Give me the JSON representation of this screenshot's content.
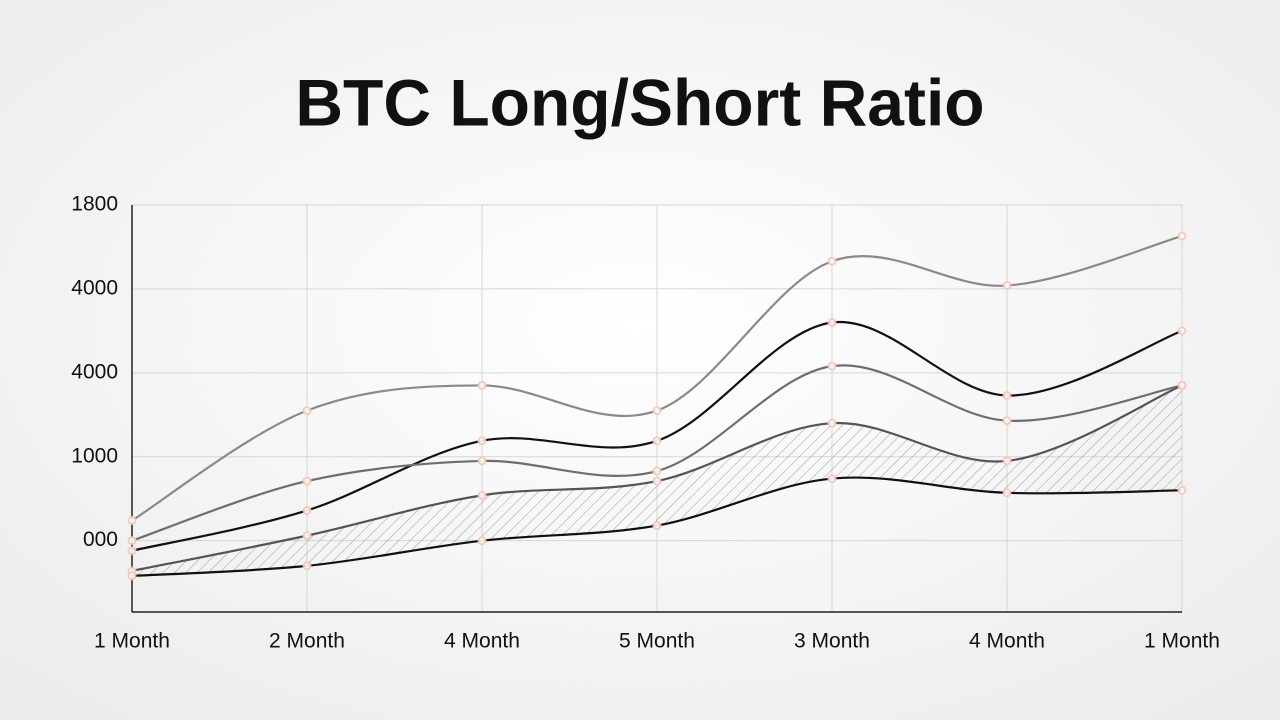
{
  "chart_data": {
    "type": "line",
    "title": "BTC Long/Short Ratio",
    "categories": [
      "1 Month",
      "2 Month",
      "4 Month",
      "5 Month",
      "3 Month",
      "4 Month",
      "1 Month"
    ],
    "ylim": [
      -0.85,
      4
    ],
    "yticks": [
      {
        "value": 0,
        "label": "000"
      },
      {
        "value": 1,
        "label": "1000"
      },
      {
        "value": 2,
        "label": "4000"
      },
      {
        "value": 3,
        "label": "4000"
      },
      {
        "value": 4,
        "label": "1800"
      }
    ],
    "grid": true,
    "series": [
      {
        "color": "#8a8a8a",
        "values": [
          0.24,
          1.55,
          1.85,
          1.55,
          3.33,
          3.04,
          3.63
        ]
      },
      {
        "color": "#111111",
        "values": [
          -0.12,
          0.36,
          1.19,
          1.19,
          2.6,
          1.73,
          2.5
        ]
      },
      {
        "color": "#6e6e6e",
        "values": [
          0,
          0.71,
          0.95,
          0.83,
          2.08,
          1.43,
          1.85
        ]
      },
      {
        "color": "#555555",
        "values": [
          -0.36,
          0.06,
          0.54,
          0.71,
          1.4,
          0.95,
          1.85
        ]
      },
      {
        "color": "#111111",
        "values": [
          -0.42,
          -0.3,
          0,
          0.18,
          0.74,
          0.57,
          0.6
        ]
      }
    ]
  }
}
